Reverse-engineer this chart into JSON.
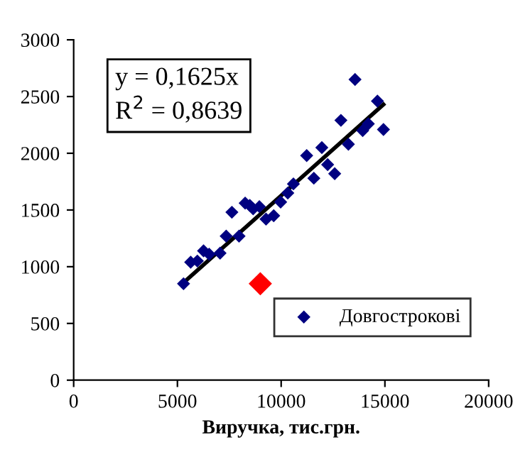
{
  "chart_data": {
    "type": "scatter",
    "xlabel": "Виручка, тис.грн.",
    "xlim": [
      0,
      20000
    ],
    "xticks": [
      0,
      5000,
      10000,
      15000,
      20000
    ],
    "ylim": [
      0,
      3000
    ],
    "yticks": [
      0,
      500,
      1000,
      1500,
      2000,
      2500,
      3000
    ],
    "grid": false,
    "legend": "bottom right",
    "marker": "diamond",
    "annotations": [
      "y = 0,1625x",
      "R$^{2}$ = 0,8639"
    ],
    "series": [
      {
        "name": "Довгострокові",
        "color": "#000080",
        "x": [
          5295,
          5640,
          5960,
          6260,
          6530,
          7055,
          7350,
          7970,
          7625,
          8265,
          8490,
          8650,
          8950,
          9270,
          9640,
          9975,
          10320,
          10590,
          11230,
          11575,
          11960,
          12240,
          12580,
          12880,
          13240,
          13560,
          13930,
          14200,
          14640,
          14930
        ],
        "values": [
          850,
          1040,
          1050,
          1140,
          1110,
          1120,
          1270,
          1270,
          1480,
          1560,
          1540,
          1510,
          1530,
          1420,
          1450,
          1570,
          1650,
          1730,
          1980,
          1780,
          2050,
          1900,
          1820,
          2290,
          2080,
          2650,
          2200,
          2260,
          2460,
          2210
        ]
      },
      {
        "color": "#ff0000",
        "x": [
          8995
        ],
        "values": [
          850
        ]
      },
      {
        "type": "line",
        "color": "#000000",
        "marker": "none",
        "line_style": "solid",
        "x": [
          5295,
          14930
        ],
        "values": [
          860,
          2430
        ]
      }
    ]
  }
}
